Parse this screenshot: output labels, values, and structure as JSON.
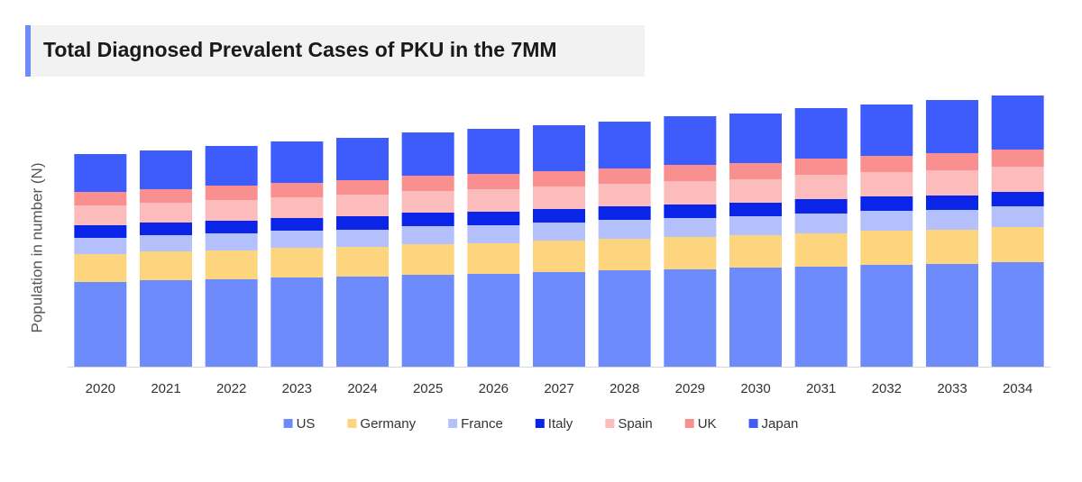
{
  "chart_data": {
    "type": "stacked_bar",
    "title": "Total Diagnosed Prevalent Cases of PKU in the 7MM",
    "y_label": "Population in number (N)",
    "categories": [
      "2020",
      "2021",
      "2022",
      "2023",
      "2024",
      "2025",
      "2026",
      "2027",
      "2028",
      "2029",
      "2030",
      "2031",
      "2032",
      "2033",
      "2034"
    ],
    "series": [
      {
        "name": "US",
        "color": "#6e8bfc",
        "values": [
          94,
          96,
          97,
          99,
          100,
          102,
          103,
          105,
          107,
          108,
          110,
          111,
          113,
          114,
          116
        ]
      },
      {
        "name": "Germany",
        "color": "#fdd57e",
        "values": [
          31,
          32,
          32,
          33,
          33,
          34,
          34,
          35,
          35,
          36,
          36,
          37,
          38,
          38,
          39
        ]
      },
      {
        "name": "France",
        "color": "#b4c0fc",
        "values": [
          18,
          18,
          19,
          19,
          19,
          20,
          20,
          20,
          21,
          21,
          21,
          22,
          22,
          22,
          23
        ]
      },
      {
        "name": "Italy",
        "color": "#0a24e8",
        "values": [
          14,
          14,
          14,
          14,
          15,
          15,
          15,
          15,
          15,
          15,
          15,
          16,
          16,
          16,
          16
        ]
      },
      {
        "name": "Spain",
        "color": "#fcbcbc",
        "values": [
          22,
          22,
          23,
          23,
          24,
          24,
          25,
          25,
          25,
          26,
          26,
          27,
          27,
          28,
          28
        ]
      },
      {
        "name": "UK",
        "color": "#f98f8f",
        "values": [
          15,
          15,
          16,
          16,
          16,
          17,
          17,
          17,
          17,
          18,
          18,
          18,
          18,
          19,
          19
        ]
      },
      {
        "name": "Japan",
        "color": "#3d5cfb",
        "values": [
          42,
          43,
          44,
          46,
          47,
          48,
          50,
          51,
          52,
          54,
          55,
          56,
          57,
          59,
          60
        ]
      }
    ],
    "ylim": [
      0,
      307
    ]
  }
}
